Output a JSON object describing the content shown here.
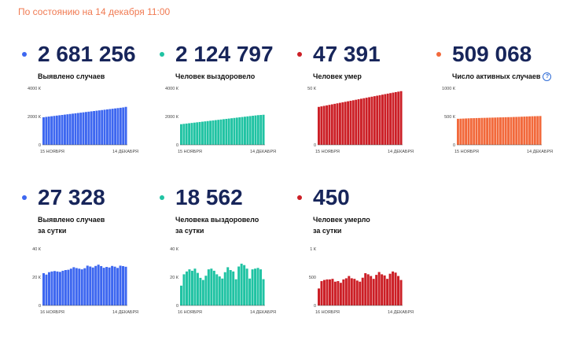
{
  "header": {
    "status": "По состоянию на 14 декабря 11:00"
  },
  "chart_data": [
    {
      "type": "bar",
      "number": "2 681 256",
      "label": "Выявлено случаев",
      "label2": "",
      "color": "#3d67f0",
      "yticks": [
        {
          "v": 4000000,
          "t": "4000 К"
        },
        {
          "v": 2000000,
          "t": "2000 К"
        },
        {
          "v": 0,
          "t": "0"
        }
      ],
      "ylim": [
        0,
        4000000
      ],
      "xstart": "15 НОЯБРЯ",
      "xend": "14 ДЕКАБРЯ",
      "values": [
        1950000,
        1974000,
        1997000,
        2020000,
        2043000,
        2066000,
        2089000,
        2112000,
        2135000,
        2158000,
        2181000,
        2204000,
        2227000,
        2250000,
        2273000,
        2296000,
        2319000,
        2342000,
        2365000,
        2388000,
        2411000,
        2434000,
        2457000,
        2480000,
        2503000,
        2526000,
        2549000,
        2572000,
        2595000,
        2618000,
        2641000,
        2681256
      ]
    },
    {
      "type": "bar",
      "number": "2 124 797",
      "label": "Человек выздоровело",
      "label2": "",
      "color": "#20c3a3",
      "yticks": [
        {
          "v": 4000000,
          "t": "4000 К"
        },
        {
          "v": 2000000,
          "t": "2000 К"
        },
        {
          "v": 0,
          "t": "0"
        }
      ],
      "ylim": [
        0,
        4000000
      ],
      "xstart": "15 НОЯБРЯ",
      "xend": "14 ДЕКАБРЯ",
      "values": [
        1460000,
        1482000,
        1504000,
        1526000,
        1548000,
        1570000,
        1592000,
        1614000,
        1636000,
        1658000,
        1680000,
        1702000,
        1724000,
        1746000,
        1768000,
        1790000,
        1812000,
        1834000,
        1856000,
        1878000,
        1900000,
        1922000,
        1944000,
        1966000,
        1988000,
        2010000,
        2032000,
        2054000,
        2076000,
        2098000,
        2110000,
        2124797
      ]
    },
    {
      "type": "bar",
      "number": "47 391",
      "label": "Человек умер",
      "label2": "",
      "color": "#cc1f26",
      "yticks": [
        {
          "v": 50000,
          "t": "50 К"
        },
        {
          "v": 0,
          "t": "0"
        }
      ],
      "ylim": [
        0,
        50000
      ],
      "xstart": "15 НОЯБРЯ",
      "xend": "14 ДЕКАБРЯ",
      "values": [
        33500,
        33950,
        34400,
        34850,
        35300,
        35750,
        36200,
        36650,
        37100,
        37550,
        38000,
        38450,
        38900,
        39350,
        39800,
        40250,
        40700,
        41150,
        41600,
        42050,
        42500,
        42950,
        43400,
        43850,
        44300,
        44750,
        45200,
        45650,
        46100,
        46550,
        46950,
        47391
      ]
    },
    {
      "type": "bar",
      "number": "509 068",
      "label": "Число активных случаев",
      "label2": "",
      "color": "#f2693b",
      "help": "?",
      "yticks": [
        {
          "v": 1000000,
          "t": "1000 К"
        },
        {
          "v": 500000,
          "t": "500 К"
        },
        {
          "v": 0,
          "t": "0"
        }
      ],
      "ylim": [
        0,
        1000000
      ],
      "xstart": "15 НОЯБРЯ",
      "xend": "14 ДЕКАБРЯ",
      "values": [
        460000,
        462000,
        464000,
        466000,
        468000,
        470000,
        471000,
        473000,
        474000,
        476000,
        477000,
        478000,
        480000,
        481000,
        482000,
        484000,
        485000,
        486000,
        488000,
        489000,
        490000,
        492000,
        493000,
        495000,
        497000,
        499000,
        501000,
        503000,
        505000,
        506000,
        507500,
        509068
      ]
    },
    {
      "type": "bar",
      "number": "27 328",
      "label": "Выявлено случаев",
      "label2": "за сутки",
      "color": "#3d67f0",
      "yticks": [
        {
          "v": 40000,
          "t": "40 К"
        },
        {
          "v": 20000,
          "t": "20 К"
        },
        {
          "v": 0,
          "t": "0"
        }
      ],
      "ylim": [
        0,
        40000
      ],
      "xstart": "16 НОЯБРЯ",
      "xend": "14 ДЕКАБРЯ",
      "values": [
        22800,
        21800,
        23500,
        24000,
        24300,
        24000,
        23700,
        24500,
        25000,
        25200,
        26000,
        27000,
        26400,
        26000,
        25500,
        26300,
        28100,
        27500,
        26800,
        27900,
        28800,
        27800,
        26600,
        27200,
        26800,
        27900,
        27400,
        26500,
        28100,
        27800,
        27328
      ]
    },
    {
      "type": "bar",
      "number": "18 562",
      "label": "Человека выздоровело",
      "label2": "за сутки",
      "color": "#20c3a3",
      "yticks": [
        {
          "v": 40000,
          "t": "40 К"
        },
        {
          "v": 20000,
          "t": "20 К"
        },
        {
          "v": 0,
          "t": "0"
        }
      ],
      "ylim": [
        0,
        40000
      ],
      "xstart": "16 НОЯБРЯ",
      "xend": "14 ДЕКАБРЯ",
      "values": [
        14000,
        22000,
        24000,
        25500,
        24500,
        26000,
        23000,
        19500,
        18000,
        21000,
        25500,
        26000,
        24500,
        22000,
        20500,
        19000,
        23500,
        27000,
        25000,
        24000,
        18500,
        27500,
        29500,
        28500,
        26000,
        19000,
        25500,
        26000,
        26500,
        25500,
        18562
      ]
    },
    {
      "type": "bar",
      "number": "450",
      "label": "Человек умерло",
      "label2": "за сутки",
      "color": "#cc1f26",
      "yticks": [
        {
          "v": 1000,
          "t": "1 К"
        },
        {
          "v": 500,
          "t": "500"
        },
        {
          "v": 0,
          "t": "0"
        }
      ],
      "ylim": [
        0,
        1000
      ],
      "xstart": "16 НОЯБРЯ",
      "xend": "14 ДЕКАБРЯ",
      "values": [
        300,
        430,
        450,
        460,
        460,
        470,
        420,
        430,
        400,
        460,
        480,
        520,
        480,
        470,
        440,
        420,
        490,
        570,
        550,
        520,
        470,
        540,
        590,
        550,
        530,
        470,
        560,
        600,
        580,
        520,
        450
      ]
    }
  ]
}
